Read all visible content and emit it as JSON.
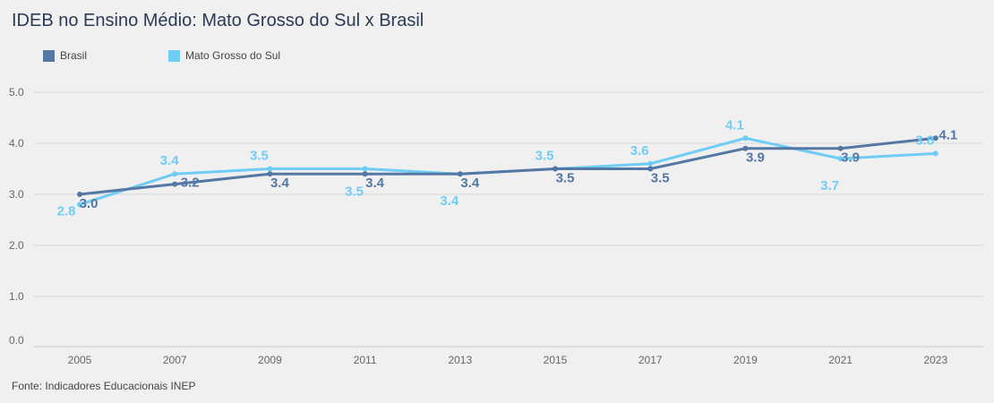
{
  "title": "IDEB no Ensino Médio: Mato Grosso do Sul x Brasil",
  "source": "Fonte: Indicadores Educacionais INEP",
  "chart_data": {
    "type": "line",
    "categories": [
      "2005",
      "2007",
      "2009",
      "2011",
      "2013",
      "2015",
      "2017",
      "2019",
      "2021",
      "2023"
    ],
    "ylim": [
      0,
      5
    ],
    "yticks": [
      "0.0",
      "1.0",
      "2.0",
      "3.0",
      "4.0",
      "5.0"
    ],
    "grid": true,
    "legend_position": "top-left",
    "series": [
      {
        "name": "Brasil",
        "color": "#5477a3",
        "values": [
          3.0,
          3.2,
          3.4,
          3.4,
          3.4,
          3.5,
          3.5,
          3.9,
          3.9,
          4.1
        ],
        "labels": [
          "3.0",
          "3.2",
          "3.4",
          "3.4",
          "3.4",
          "3.5",
          "3.5",
          "3.9",
          "3.9",
          "4.1"
        ]
      },
      {
        "name": "Mato Grosso do Sul",
        "color": "#6fcdf5",
        "values": [
          2.8,
          3.4,
          3.5,
          3.5,
          3.4,
          3.5,
          3.6,
          4.1,
          3.7,
          3.8
        ],
        "labels": [
          "2.8",
          "3.4",
          "3.5",
          "3.5",
          "3.4",
          "3.5",
          "3.6",
          "4.1",
          "3.7",
          "3.8"
        ]
      }
    ]
  }
}
